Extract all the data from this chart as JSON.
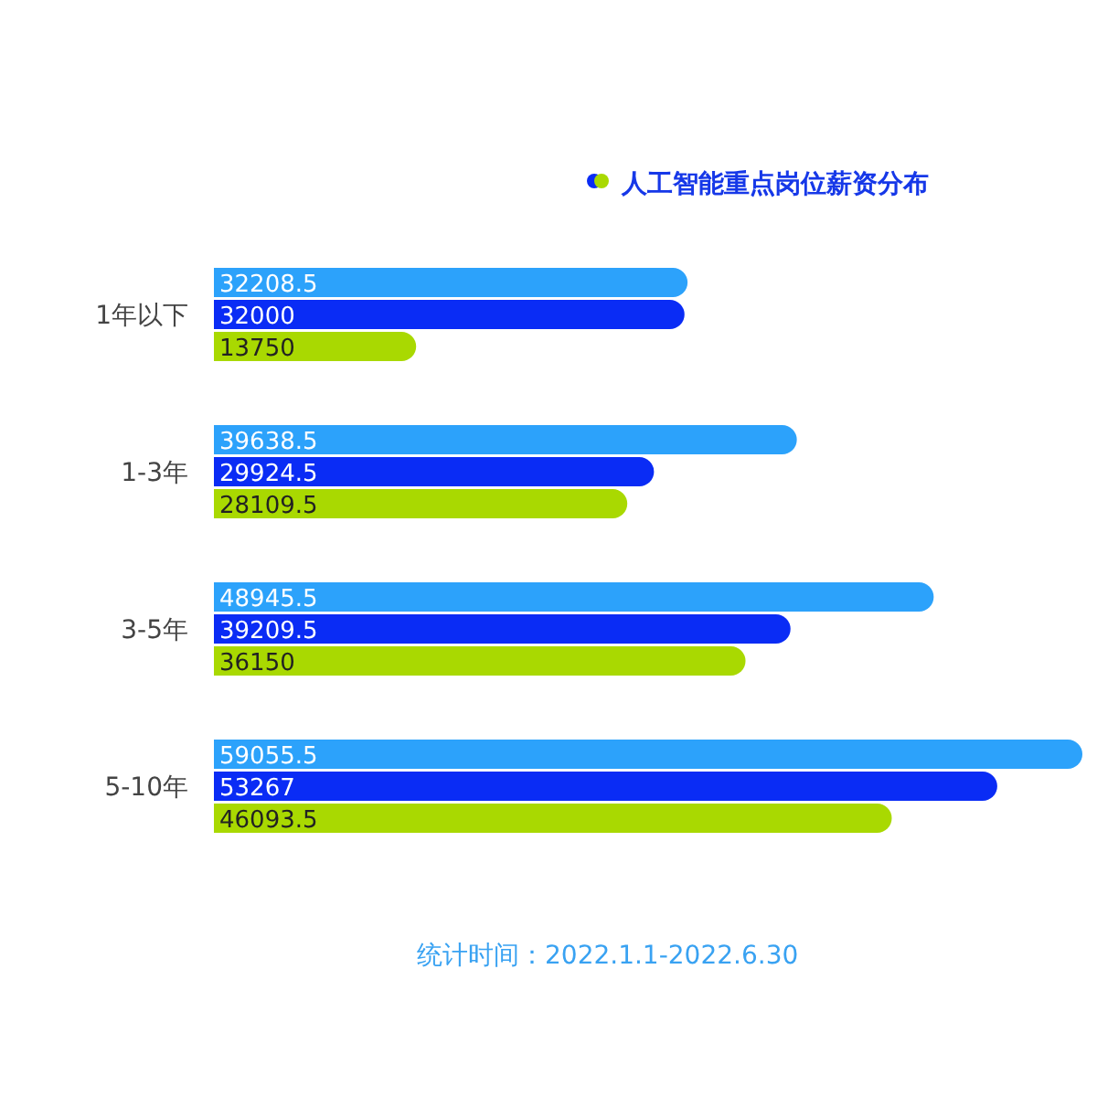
{
  "chart_data": {
    "type": "bar",
    "orientation": "horizontal",
    "title": "人工智能重点岗位薪资分布",
    "categories": [
      "1年以下",
      "1-3年",
      "3-5年",
      "5-10年"
    ],
    "data_labels": true,
    "series": [
      {
        "color": "#2ca2fb",
        "values": [
          32208.5,
          39638.5,
          48945.5,
          59055.5
        ]
      },
      {
        "color": "#0a2cf5",
        "values": [
          32000,
          29924.5,
          39209.5,
          53267
        ]
      },
      {
        "color": "#a9d901",
        "values": [
          13750,
          28109.5,
          36150,
          46093.5
        ]
      }
    ],
    "annotations": [
      "统计时间：2022.1.1-2022.6.30"
    ]
  }
}
